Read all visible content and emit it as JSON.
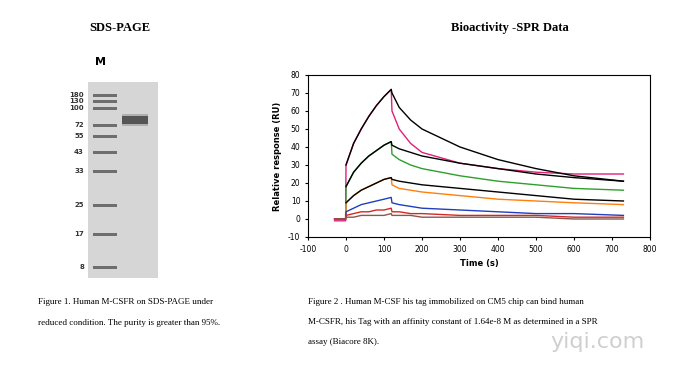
{
  "gel": {
    "title": "SDS-PAGE",
    "lane_label": "M",
    "marker_labels": [
      180,
      130,
      100,
      72,
      55,
      43,
      33,
      25,
      17,
      8
    ],
    "sample_band_kda": 80,
    "caption_lines": [
      "Figure 1. Human M-CSFR on SDS-PAGE under",
      "reduced condition. The purity is greater than 95%."
    ]
  },
  "chart_data": {
    "type": "line",
    "title": "Bioactivity -SPR Data",
    "x_label": "Time (s)",
    "y_label": "Relative response (RU)",
    "xlim": [
      -100,
      800
    ],
    "ylim": [
      -10,
      80
    ],
    "xticks": [
      -100,
      0,
      100,
      200,
      300,
      400,
      500,
      600,
      700,
      800
    ],
    "yticks": [
      -10,
      0,
      10,
      20,
      30,
      40,
      50,
      60,
      70,
      80
    ],
    "grid": false,
    "x": [
      -30,
      -1,
      0,
      20,
      40,
      60,
      80,
      100,
      119,
      121,
      140,
      170,
      200,
      300,
      400,
      500,
      600,
      730
    ],
    "series": [
      {
        "color": "#e0207a",
        "line_style": "solid",
        "values": [
          -1,
          -1,
          30,
          42,
          50,
          57,
          63,
          68,
          72,
          60,
          50,
          42,
          37,
          31,
          28,
          26,
          25,
          25
        ]
      },
      {
        "color": "#000000",
        "line_style": "solid",
        "values": [
          null,
          null,
          30,
          42,
          50,
          57,
          63,
          68,
          72,
          70,
          62,
          55,
          50,
          40,
          33,
          28,
          24,
          21
        ]
      },
      {
        "color": "#2ca02c",
        "line_style": "solid",
        "values": [
          0,
          0,
          18,
          26,
          31,
          35,
          38,
          41,
          43,
          36,
          33,
          30,
          28,
          24,
          21,
          19,
          17,
          16
        ]
      },
      {
        "color": "#000000",
        "line_style": "solid",
        "values": [
          null,
          null,
          18,
          26,
          31,
          35,
          38,
          41,
          43,
          41,
          39,
          37,
          35,
          31,
          28,
          25,
          23,
          21
        ]
      },
      {
        "color": "#ff7f0e",
        "line_style": "solid",
        "values": [
          0,
          0,
          9,
          13,
          16,
          18,
          20,
          22,
          23,
          19,
          17,
          16,
          15,
          13,
          11,
          10,
          9,
          8
        ]
      },
      {
        "color": "#000000",
        "line_style": "solid",
        "values": [
          null,
          null,
          9,
          13,
          16,
          18,
          20,
          22,
          23,
          22,
          21,
          20,
          19,
          17,
          15,
          13,
          11,
          10
        ]
      },
      {
        "color": "#1f3fbf",
        "line_style": "solid",
        "values": [
          0,
          0,
          4,
          6,
          8,
          9,
          10,
          11,
          12,
          9,
          8,
          7,
          6,
          5,
          4,
          3,
          3,
          2
        ]
      },
      {
        "color": "#d62728",
        "line_style": "solid",
        "values": [
          0,
          0,
          2,
          3,
          4,
          4,
          5,
          5,
          6,
          4,
          4,
          3,
          3,
          2,
          2,
          2,
          1,
          1
        ]
      },
      {
        "color": "#8c564b",
        "line_style": "solid",
        "values": [
          0,
          0,
          1,
          1,
          2,
          2,
          2,
          2,
          3,
          2,
          2,
          2,
          1,
          1,
          1,
          1,
          0,
          0
        ]
      }
    ],
    "caption_lines": [
      "Figure 2 . Human M-CSF his tag immobilized on CM5 chip can bind human",
      "M-CSFR, his Tag with an affinity constant of 1.64e-8 M as determined in a SPR",
      "assay (Biacore 8K)."
    ]
  },
  "watermark": "yiqi.com"
}
